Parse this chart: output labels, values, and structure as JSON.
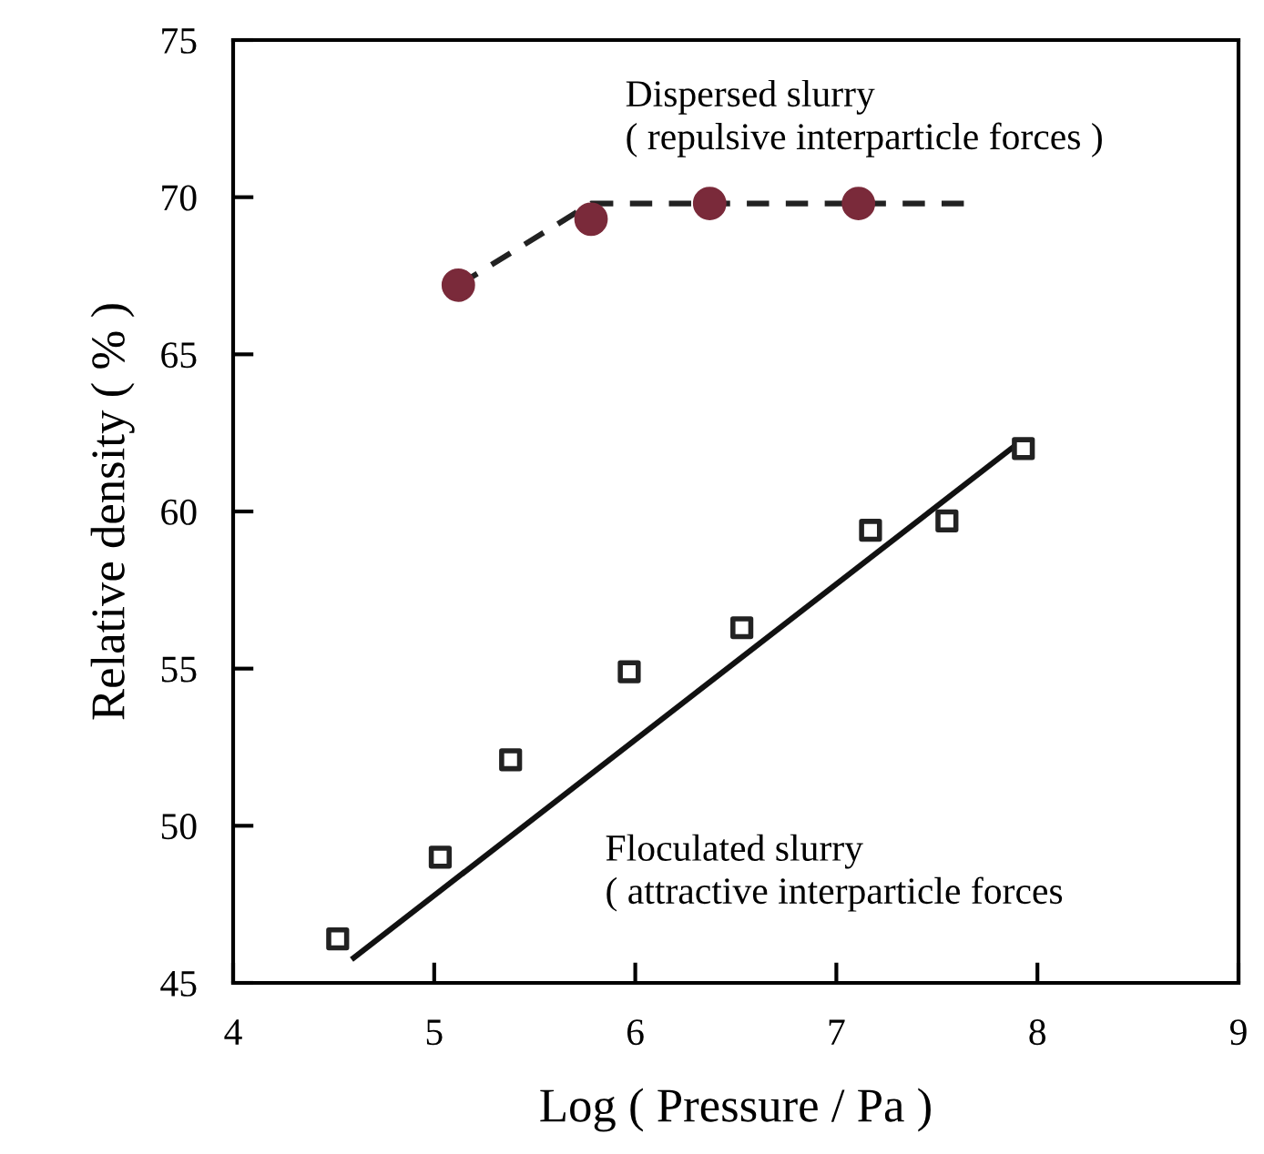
{
  "chart_data": {
    "type": "scatter",
    "xlabel": "Log ( Pressure / Pa )",
    "ylabel": "Relative density ( % )",
    "xlim": [
      4,
      9
    ],
    "xticks": [
      4,
      5,
      6,
      7,
      8,
      9
    ],
    "ylim": [
      45,
      75
    ],
    "yticks": [
      45,
      50,
      55,
      60,
      65,
      70,
      75
    ],
    "grid": false,
    "legend": false,
    "series": [
      {
        "type": "line",
        "color": "#222222",
        "line_style": "dashed",
        "marker": "none",
        "x": [
          5.12,
          5.78,
          7.67
        ],
        "values": [
          67.2,
          69.8,
          69.8
        ]
      },
      {
        "color": "#7a2a3a",
        "marker": "circle",
        "x": [
          5.12,
          5.78,
          6.37,
          7.11
        ],
        "values": [
          67.2,
          69.3,
          69.8,
          69.8
        ]
      },
      {
        "type": "line",
        "color": "#111111",
        "line_style": "solid",
        "marker": "none",
        "x": [
          4.6,
          7.89
        ],
        "values": [
          45.8,
          62.1
        ]
      },
      {
        "color": "#222222",
        "marker": "square",
        "x": [
          4.52,
          5.03,
          5.38,
          5.97,
          6.53,
          7.17,
          7.55,
          7.93
        ],
        "values": [
          46.4,
          49.0,
          52.1,
          54.9,
          56.3,
          59.4,
          59.7,
          62.0
        ]
      }
    ],
    "annotations": [
      "Dispersed slurry\n( repulsive interparticle forces )",
      "Floculated slurry\n( attractive interparticle forces"
    ]
  }
}
